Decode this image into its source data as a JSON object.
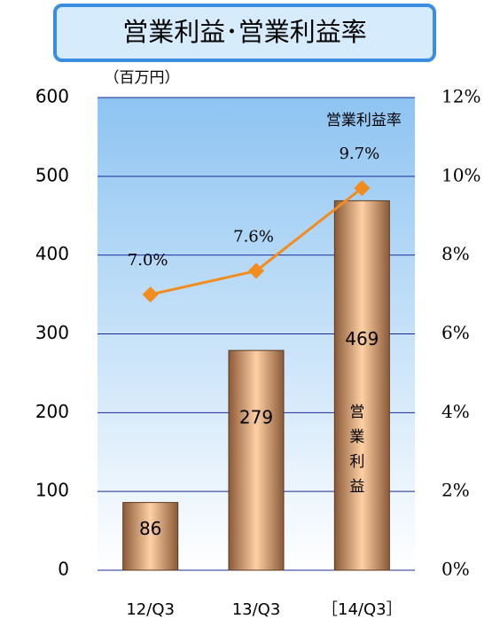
{
  "chart_data": {
    "type": "bar",
    "title": "営業利益･営業利益率",
    "unit_label": "（百万円）",
    "categories": [
      "12/Q3",
      "13/Q3",
      "［14/Q3］"
    ],
    "series": [
      {
        "name": "営業利益",
        "type": "bar",
        "color": "#d89a68",
        "values": [
          86,
          279,
          469
        ]
      },
      {
        "name": "営業利益率",
        "type": "line",
        "axis": "y2",
        "color": "#f28c1e",
        "values": [
          7.0,
          7.6,
          9.7
        ],
        "value_labels": [
          "7.0%",
          "7.6%",
          "9.7%"
        ]
      }
    ],
    "ylim": [
      0,
      600
    ],
    "yticks": [
      0,
      100,
      200,
      300,
      400,
      500,
      600
    ],
    "y2lim": [
      0,
      12
    ],
    "y2ticks": [
      {
        "value": 0,
        "label": "0%"
      },
      {
        "value": 2,
        "label": "2%"
      },
      {
        "value": 4,
        "label": "4%"
      },
      {
        "value": 6,
        "label": "6%"
      },
      {
        "value": 8,
        "label": "8%"
      },
      {
        "value": 10,
        "label": "10%"
      },
      {
        "value": 12,
        "label": "12%"
      }
    ],
    "grid": true
  }
}
